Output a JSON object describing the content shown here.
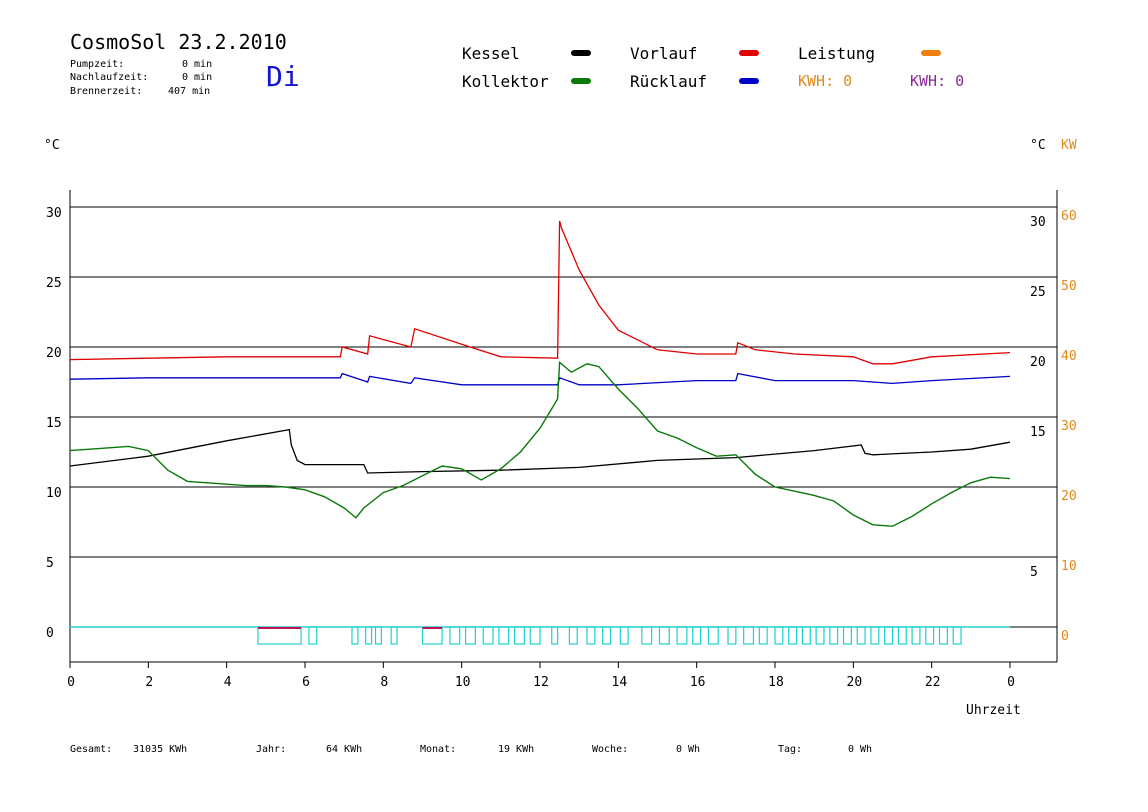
{
  "header": {
    "title": "CosmoSol 23.2.2010",
    "day": "Di",
    "pumpzeit_label": "Pumpzeit:",
    "pumpzeit_value": "0 min",
    "nachlauf_label": "Nachlaufzeit:",
    "nachlauf_value": "0 min",
    "brenner_label": "Brennerzeit:",
    "brenner_value": "407 min"
  },
  "legend": {
    "kessel": "Kessel",
    "kollektor": "Kollektor",
    "vorlauf": "Vorlauf",
    "ruecklauf": "Rücklauf",
    "leistung": "Leistung",
    "kwh1": "KWH: 0",
    "kwh2": "KWH: 0"
  },
  "axes": {
    "left_unit": "°C",
    "right_unit": "°C",
    "right_unit2": "KW",
    "xlabel": "Uhrzeit"
  },
  "footer": {
    "gesamt_label": "Gesamt:",
    "gesamt_value": "31035 KWh",
    "jahr_label": "Jahr:",
    "jahr_value": "64 KWh",
    "monat_label": "Monat:",
    "monat_value": "19 KWh",
    "woche_label": "Woche:",
    "woche_value": "0 Wh",
    "tag_label": "Tag:",
    "tag_value": "0 Wh"
  },
  "colors": {
    "kessel": "#000000",
    "kollektor": "#0a7a0a",
    "vorlauf": "#e00000",
    "ruecklauf": "#0000c8",
    "leistung": "#f08010",
    "kwh1": "#e08a1a",
    "kwh2": "#8a2a9a",
    "pump": "#20d0d0",
    "burner": "#c01050"
  },
  "chart_data": {
    "type": "line",
    "title": "CosmoSol 23.2.2010",
    "xlabel": "Uhrzeit",
    "ylabel": "°C",
    "xlim": [
      0,
      24
    ],
    "ylim": [
      -2.5,
      31.5
    ],
    "y2lim": [
      -5,
      63
    ],
    "x_ticks": [
      "0",
      "2",
      "4",
      "6",
      "8",
      "10",
      "12",
      "14",
      "16",
      "18",
      "20",
      "22",
      "0"
    ],
    "y_ticks": [
      0,
      5,
      10,
      15,
      20,
      25,
      30
    ],
    "y_ticks_right": [
      5,
      15,
      20,
      25,
      30
    ],
    "y2_ticks": [
      0,
      10,
      20,
      30,
      40,
      50,
      60
    ],
    "gridlines_y": [
      0,
      5,
      10,
      15,
      20,
      25,
      30
    ],
    "series": [
      {
        "name": "Vorlauf",
        "key": "vorlauf",
        "x": [
          0,
          2,
          4,
          6,
          6.9,
          6.95,
          7.6,
          7.65,
          8.7,
          8.8,
          10,
          11,
          12.45,
          12.5,
          12.55,
          13,
          13.5,
          14,
          15,
          16,
          17,
          17.05,
          17.5,
          18.5,
          20,
          20.5,
          21,
          22,
          24
        ],
        "values": [
          19.1,
          19.2,
          19.3,
          19.3,
          19.3,
          20.0,
          19.5,
          20.8,
          20.0,
          21.3,
          20.2,
          19.3,
          19.2,
          29.0,
          28.5,
          25.5,
          23.0,
          21.2,
          19.8,
          19.5,
          19.5,
          20.3,
          19.8,
          19.5,
          19.3,
          18.8,
          18.8,
          19.3,
          19.6
        ]
      },
      {
        "name": "Rücklauf",
        "key": "ruecklauf",
        "x": [
          0,
          2,
          4,
          6,
          6.9,
          6.95,
          7.6,
          7.65,
          8.7,
          8.8,
          10,
          12,
          12.45,
          12.5,
          13,
          14,
          16,
          17,
          17.05,
          18,
          20,
          21,
          22,
          24
        ],
        "values": [
          17.7,
          17.8,
          17.8,
          17.8,
          17.8,
          18.1,
          17.5,
          17.9,
          17.4,
          17.8,
          17.3,
          17.3,
          17.3,
          17.8,
          17.3,
          17.3,
          17.6,
          17.6,
          18.1,
          17.6,
          17.6,
          17.4,
          17.6,
          17.9
        ]
      },
      {
        "name": "Kessel",
        "key": "kessel",
        "x": [
          0,
          2,
          4,
          5.6,
          5.65,
          5.8,
          6,
          7.5,
          7.6,
          9,
          11,
          13,
          15,
          16,
          17,
          19,
          20.2,
          20.3,
          20.5,
          22,
          23,
          24
        ],
        "values": [
          11.5,
          12.2,
          13.3,
          14.1,
          13.0,
          11.9,
          11.6,
          11.6,
          11.0,
          11.1,
          11.2,
          11.4,
          11.9,
          12.0,
          12.1,
          12.6,
          13.0,
          12.4,
          12.3,
          12.5,
          12.7,
          13.2
        ]
      },
      {
        "name": "Kollektor",
        "key": "kollektor",
        "x": [
          0,
          0.5,
          1,
          1.5,
          2,
          2.5,
          3,
          3.5,
          4,
          4.5,
          5,
          5.5,
          6,
          6.5,
          7,
          7.3,
          7.5,
          8,
          8.5,
          9,
          9.5,
          10,
          10.5,
          11,
          11.5,
          12,
          12.3,
          12.45,
          12.5,
          12.8,
          13.2,
          13.5,
          14,
          14.5,
          15,
          15.5,
          16,
          16.5,
          17,
          17.5,
          18,
          18.5,
          19,
          19.5,
          20,
          20.5,
          21,
          21.5,
          22,
          22.5,
          23,
          23.5,
          24
        ],
        "values": [
          12.6,
          12.7,
          12.8,
          12.9,
          12.6,
          11.2,
          10.4,
          10.3,
          10.2,
          10.1,
          10.1,
          10.0,
          9.8,
          9.3,
          8.5,
          7.8,
          8.5,
          9.6,
          10.1,
          10.8,
          11.5,
          11.3,
          10.5,
          11.3,
          12.5,
          14.2,
          15.6,
          16.3,
          18.9,
          18.2,
          18.8,
          18.6,
          17.0,
          15.6,
          14.0,
          13.5,
          12.8,
          12.2,
          12.3,
          10.9,
          10.0,
          9.7,
          9.4,
          9.0,
          8.0,
          7.3,
          7.2,
          7.9,
          8.8,
          9.6,
          10.3,
          10.7,
          10.6
        ]
      }
    ],
    "pump_segments": [
      [
        4.8,
        5.9
      ],
      [
        6.1,
        6.3
      ],
      [
        7.2,
        7.35
      ],
      [
        7.55,
        7.7
      ],
      [
        7.8,
        7.95
      ],
      [
        8.2,
        8.35
      ],
      [
        9.0,
        9.5
      ],
      [
        9.7,
        9.95
      ],
      [
        10.1,
        10.35
      ],
      [
        10.55,
        10.8
      ],
      [
        10.95,
        11.2
      ],
      [
        11.35,
        11.6
      ],
      [
        11.75,
        12.0
      ],
      [
        12.3,
        12.45
      ],
      [
        12.75,
        12.95
      ],
      [
        13.2,
        13.4
      ],
      [
        13.6,
        13.8
      ],
      [
        14.05,
        14.25
      ],
      [
        14.6,
        14.85
      ],
      [
        15.05,
        15.3
      ],
      [
        15.5,
        15.75
      ],
      [
        15.9,
        16.1
      ],
      [
        16.3,
        16.55
      ],
      [
        16.8,
        17.0
      ],
      [
        17.2,
        17.45
      ],
      [
        17.6,
        17.8
      ],
      [
        18.0,
        18.2
      ],
      [
        18.35,
        18.55
      ],
      [
        18.7,
        18.9
      ],
      [
        19.05,
        19.25
      ],
      [
        19.4,
        19.6
      ],
      [
        19.75,
        19.95
      ],
      [
        20.1,
        20.3
      ],
      [
        20.45,
        20.65
      ],
      [
        20.8,
        21.0
      ],
      [
        21.15,
        21.35
      ],
      [
        21.5,
        21.7
      ],
      [
        21.85,
        22.05
      ],
      [
        22.2,
        22.4
      ],
      [
        22.55,
        22.75
      ]
    ],
    "burner_segments": [
      [
        4.8,
        5.9
      ],
      [
        9.0,
        9.5
      ]
    ]
  }
}
